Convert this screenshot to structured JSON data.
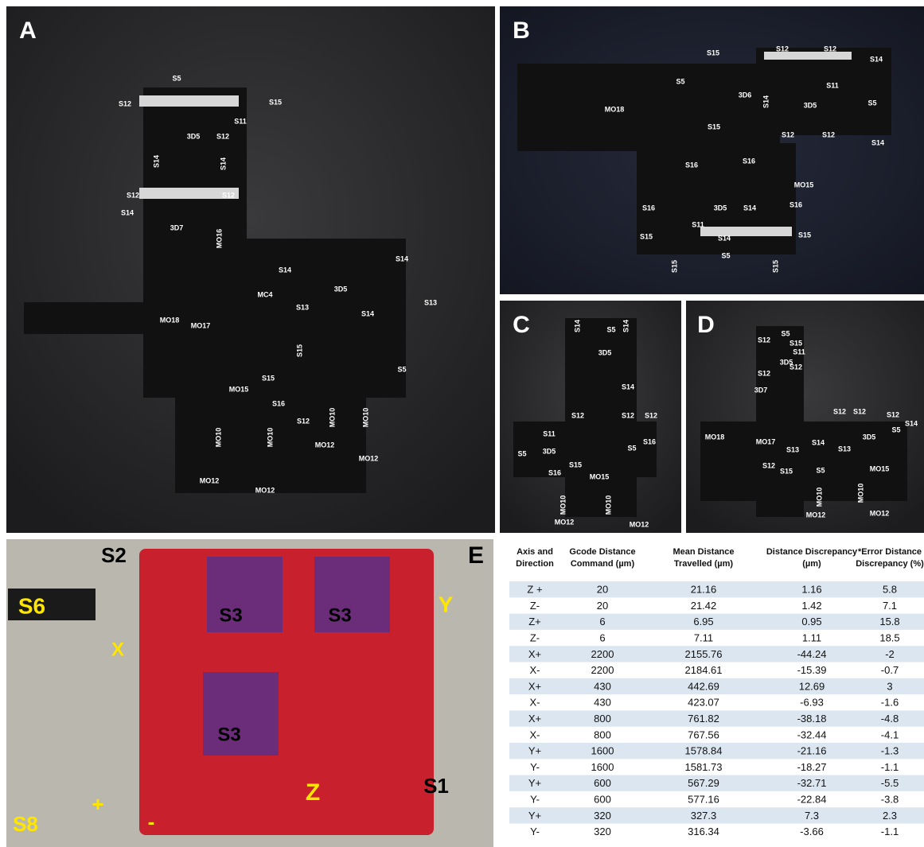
{
  "panels": [
    {
      "letter": "A",
      "labels": [
        "S5",
        "S12",
        "S15",
        "S11",
        "3D5",
        "S12",
        "S14",
        "S14",
        "S12",
        "S12",
        "S14",
        "3D7",
        "MO16",
        "S14",
        "S14",
        "3D5",
        "MC4",
        "MO18",
        "S13",
        "S13",
        "S14",
        "MO17",
        "S15",
        "S5",
        "S15",
        "MO15",
        "S16",
        "S12",
        "MO10",
        "MO10",
        "MO10",
        "MO10",
        "MO12",
        "MO12",
        "MO12",
        "MO12"
      ]
    },
    {
      "letter": "B",
      "labels": [
        "S15",
        "S12",
        "S12",
        "S14",
        "S5",
        "3D6",
        "S11",
        "3D5",
        "S5",
        "MO18",
        "S14",
        "S15",
        "S12",
        "S12",
        "S14",
        "S16",
        "S16",
        "MO15",
        "3D5",
        "S14",
        "S16",
        "S16",
        "S11",
        "S15",
        "S14",
        "S15",
        "S5",
        "S15",
        "S15"
      ]
    },
    {
      "letter": "C",
      "labels": [
        "S14",
        "S5",
        "S14",
        "3D5",
        "S14",
        "S12",
        "S12",
        "S12",
        "S11",
        "S5",
        "3D5",
        "S5",
        "S16",
        "S15",
        "S16",
        "MO15",
        "MO10",
        "MO10",
        "MO12",
        "MO12"
      ]
    },
    {
      "letter": "D",
      "labels": [
        "S5",
        "S12",
        "S15",
        "S11",
        "3D5",
        "S12",
        "S12",
        "3D7",
        "S12",
        "S12",
        "S12",
        "S14",
        "MO18",
        "MO17",
        "3D5",
        "S5",
        "S14",
        "S13",
        "S13",
        "S12",
        "S15",
        "S5",
        "MO15",
        "MO10",
        "MO10",
        "MO12",
        "MO12"
      ]
    },
    {
      "letter": "E",
      "labels": [
        "S2",
        "S6",
        "Y",
        "X",
        "S3",
        "S3",
        "S3",
        "Z",
        "S1",
        "+",
        "-",
        "S8"
      ]
    }
  ],
  "table": {
    "headers": [
      "Axis and Direction",
      "Gcode Distance Command (µm)",
      "Mean Distance Travelled (µm)",
      "Distance Discrepancy (µm)",
      "*Error Distance Discrepancy (%)"
    ],
    "rows": [
      [
        "Z +",
        "20",
        "21.16",
        "1.16",
        "5.8"
      ],
      [
        "Z-",
        "20",
        "21.42",
        "1.42",
        "7.1"
      ],
      [
        "Z+",
        "6",
        "6.95",
        "0.95",
        "15.8"
      ],
      [
        "Z-",
        "6",
        "7.11",
        "1.11",
        "18.5"
      ],
      [
        "X+",
        "2200",
        "2155.76",
        "-44.24",
        "-2"
      ],
      [
        "X-",
        "2200",
        "2184.61",
        "-15.39",
        "-0.7"
      ],
      [
        "X+",
        "430",
        "442.69",
        "12.69",
        "3"
      ],
      [
        "X-",
        "430",
        "423.07",
        "-6.93",
        "-1.6"
      ],
      [
        "X+",
        "800",
        "761.82",
        "-38.18",
        "-4.8"
      ],
      [
        "X-",
        "800",
        "767.56",
        "-32.44",
        "-4.1"
      ],
      [
        "Y+",
        "1600",
        "1578.84",
        "-21.16",
        "-1.3"
      ],
      [
        "Y-",
        "1600",
        "1581.73",
        "-18.27",
        "-1.1"
      ],
      [
        "Y+",
        "600",
        "567.29",
        "-32.71",
        "-5.5"
      ],
      [
        "Y-",
        "600",
        "577.16",
        "-22.84",
        "-3.8"
      ],
      [
        "Y+",
        "320",
        "327.3",
        "7.3",
        "2.3"
      ],
      [
        "Y-",
        "320",
        "316.34",
        "-3.66",
        "-1.1"
      ]
    ]
  }
}
